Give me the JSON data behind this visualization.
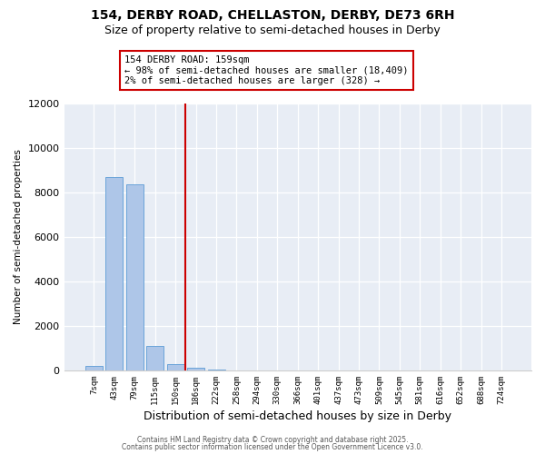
{
  "title": "154, DERBY ROAD, CHELLASTON, DERBY, DE73 6RH",
  "subtitle": "Size of property relative to semi-detached houses in Derby",
  "xlabel": "Distribution of semi-detached houses by size in Derby",
  "ylabel": "Number of semi-detached properties",
  "bar_color": "#aec6e8",
  "bar_edge_color": "#5b9bd5",
  "categories": [
    "7sqm",
    "43sqm",
    "79sqm",
    "115sqm",
    "150sqm",
    "186sqm",
    "222sqm",
    "258sqm",
    "294sqm",
    "330sqm",
    "366sqm",
    "401sqm",
    "437sqm",
    "473sqm",
    "509sqm",
    "545sqm",
    "581sqm",
    "616sqm",
    "652sqm",
    "688sqm",
    "724sqm"
  ],
  "values": [
    200,
    8700,
    8350,
    1100,
    300,
    100,
    50,
    0,
    0,
    0,
    0,
    0,
    0,
    0,
    0,
    0,
    0,
    0,
    0,
    0,
    0
  ],
  "vline_x": 4.5,
  "vline_color": "#cc0000",
  "ylim": [
    0,
    12000
  ],
  "yticks": [
    0,
    2000,
    4000,
    6000,
    8000,
    10000,
    12000
  ],
  "ann_line1": "154 DERBY ROAD: 159sqm",
  "ann_line2": "← 98% of semi-detached houses are smaller (18,409)",
  "ann_line3": "2% of semi-detached houses are larger (328) →",
  "annotation_box_color": "#cc0000",
  "bg_color": "#e8edf5",
  "footer1": "Contains HM Land Registry data © Crown copyright and database right 2025.",
  "footer2": "Contains public sector information licensed under the Open Government Licence v3.0.",
  "title_fontsize": 10,
  "subtitle_fontsize": 9
}
